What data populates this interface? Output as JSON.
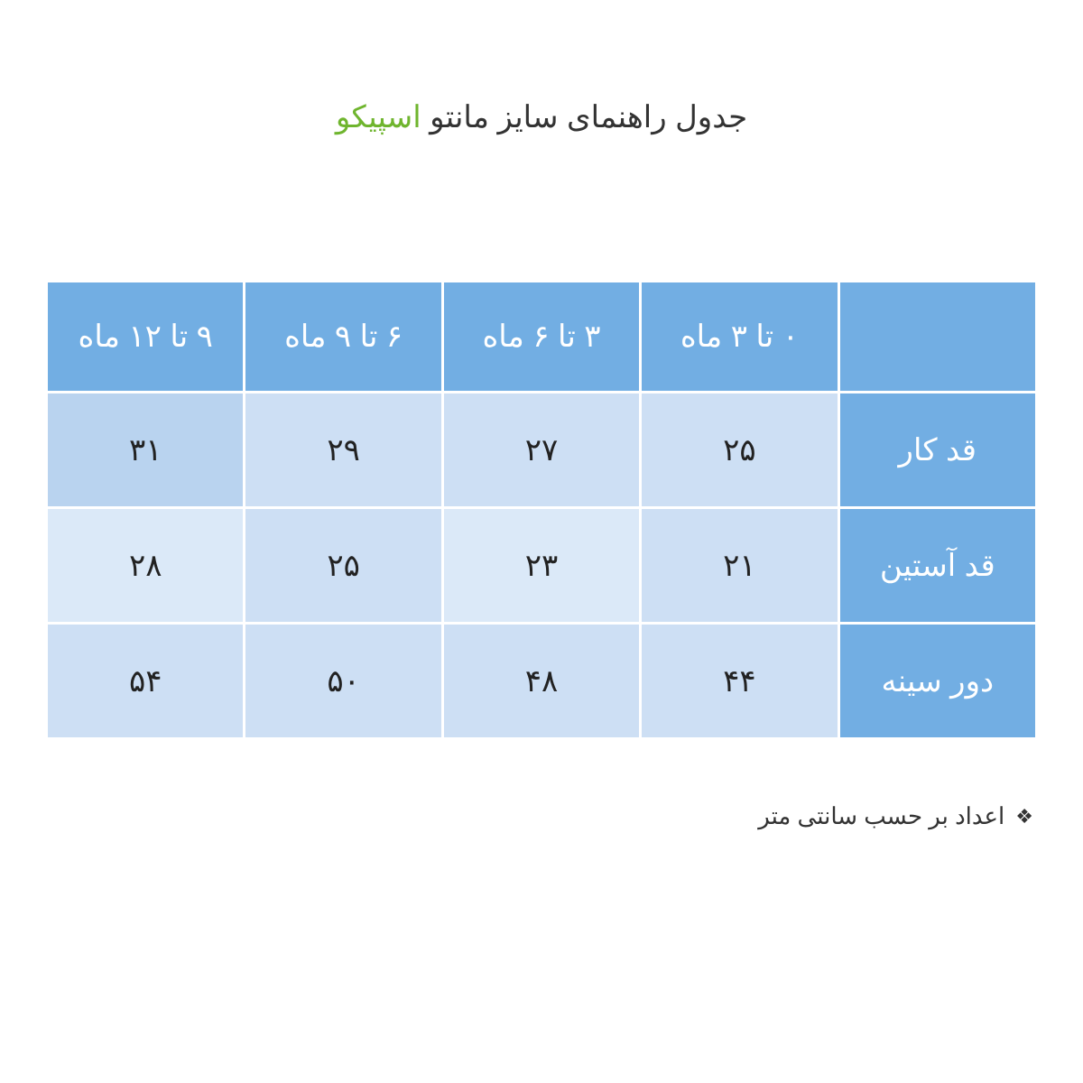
{
  "title": {
    "main": "جدول راهنمای سایز مانتو ",
    "brand": "اسپیکو"
  },
  "colors": {
    "header_bg": "#72aee3",
    "rowhead_bg": "#72aee3",
    "corner_bg": "#72aee3",
    "cell_light": "#dbe9f8",
    "cell_mid": "#cddff4",
    "cell_dark": "#b9d3ef",
    "text_white": "#ffffff",
    "text_dark": "#222222",
    "brand_green": "#6fb52e"
  },
  "columns": [
    "۰ تا ۳ ماه",
    "۳ تا ۶ ماه",
    "۶ تا ۹ ماه",
    "۹ تا ۱۲ ماه"
  ],
  "rows": [
    {
      "label": "قد کار",
      "values": [
        "۲۵",
        "۲۷",
        "۲۹",
        "۳۱"
      ],
      "cell_bgs": [
        "#cddff4",
        "#cddff4",
        "#cddff4",
        "#b9d3ef"
      ]
    },
    {
      "label": "قد آستین",
      "values": [
        "۲۱",
        "۲۳",
        "۲۵",
        "۲۸"
      ],
      "cell_bgs": [
        "#cddff4",
        "#dbe9f8",
        "#cddff4",
        "#dbe9f8"
      ]
    },
    {
      "label": "دور سینه",
      "values": [
        "۴۴",
        "۴۸",
        "۵۰",
        "۵۴"
      ],
      "cell_bgs": [
        "#cddff4",
        "#cddff4",
        "#cddff4",
        "#cddff4"
      ]
    }
  ],
  "footnote": "اعداد بر حسب سانتی متر"
}
